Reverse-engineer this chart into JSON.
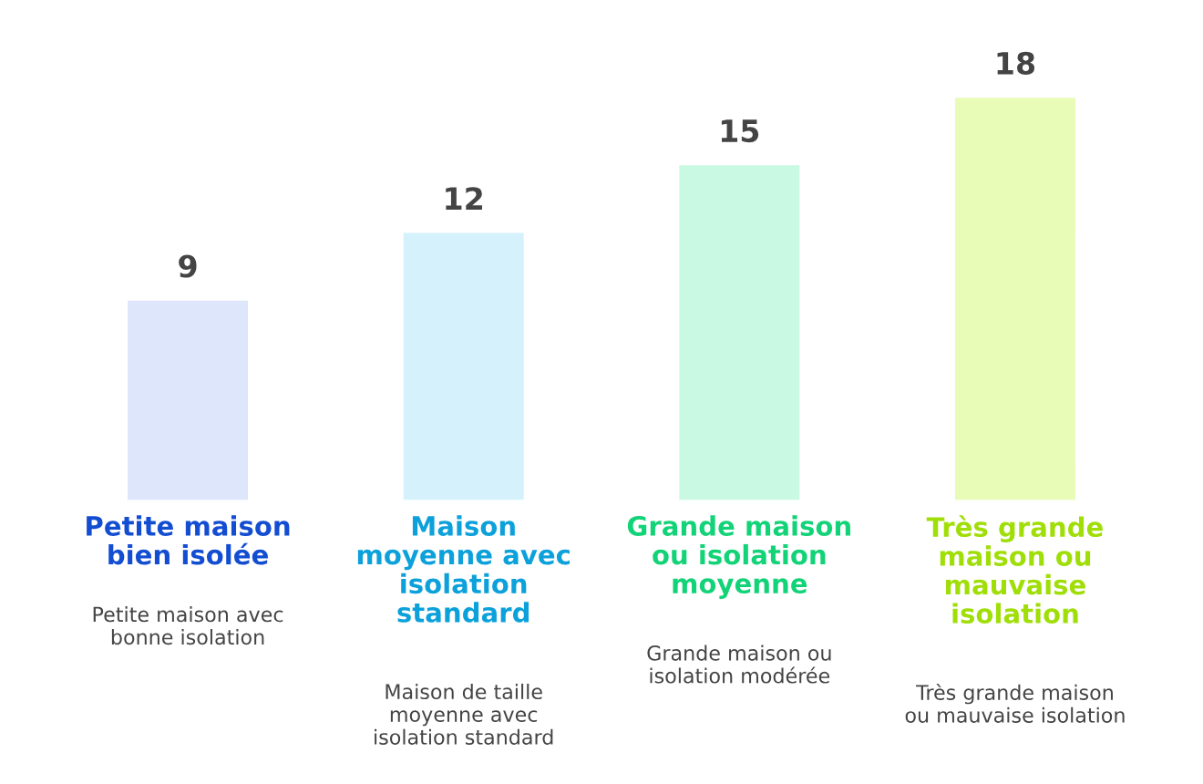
{
  "chart_data": {
    "type": "bar",
    "categories": [
      "Petite maison\nbien isolée",
      "Maison\nmoyenne avec\nisolation\nstandard",
      "Grande maison\nou isolation\nmoyenne",
      "Très grande\nmaison ou\nmauvaise\nisolation"
    ],
    "values": [
      9,
      12,
      15,
      18
    ],
    "colors": [
      "#dde6fb",
      "#d4f1fc",
      "#c9f9e2",
      "#e8fcb7"
    ],
    "data_labels": true,
    "annotations": [
      "Petite maison avec\nbonne isolation",
      "Maison de taille\nmoyenne avec\nisolation standard",
      "Grande maison ou\nisolation modérée",
      "Très grande maison\nou mauvaise isolation"
    ]
  }
}
